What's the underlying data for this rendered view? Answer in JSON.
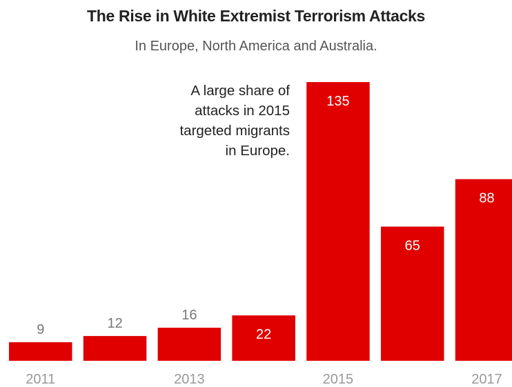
{
  "chart_data": {
    "type": "bar",
    "title": "The Rise in White Extremist Terrorism Attacks",
    "subtitle": "In Europe, North America and Australia.",
    "categories": [
      "2011",
      "2012",
      "2013",
      "2014",
      "2015",
      "2016",
      "2017"
    ],
    "values": [
      9,
      12,
      16,
      22,
      135,
      65,
      88
    ],
    "tick_labels": [
      "2011",
      "",
      "2013",
      "",
      "2015",
      "",
      "2017"
    ],
    "annotation": {
      "lines": [
        "A large share of",
        "attacks in 2015",
        "targeted migrants",
        "in Europe."
      ]
    },
    "bar_color": "#e00000",
    "outside_label_color": "#777777",
    "inside_label_color": "#ffffff",
    "ylim": [
      0,
      135
    ],
    "grid": false,
    "legend": "none"
  }
}
